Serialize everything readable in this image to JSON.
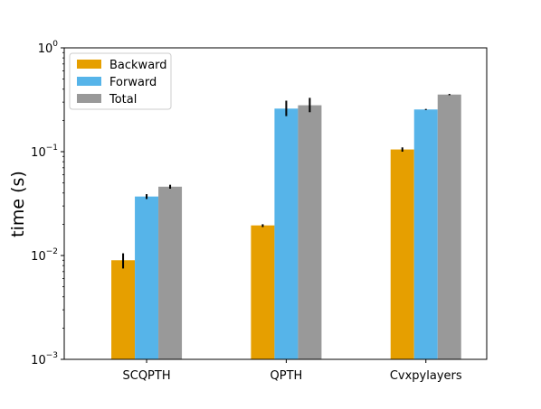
{
  "chart_data": {
    "type": "bar",
    "title": "",
    "xlabel": "",
    "ylabel": "time (s)",
    "yscale": "log",
    "ylim": [
      0.001,
      1
    ],
    "yticks": [
      {
        "value": 0.001,
        "base": "10",
        "exp": "−3"
      },
      {
        "value": 0.01,
        "base": "10",
        "exp": "−2"
      },
      {
        "value": 0.1,
        "base": "10",
        "exp": "−1"
      },
      {
        "value": 1,
        "base": "10",
        "exp": "0"
      }
    ],
    "categories": [
      "SCQPTH",
      "QPTH",
      "Cvxpylayers"
    ],
    "series": [
      {
        "name": "Backward",
        "color": "#E69F00",
        "values": [
          0.009,
          0.0195,
          0.105
        ],
        "err_low": [
          0.0075,
          0.0188,
          0.1
        ],
        "err_high": [
          0.0105,
          0.02,
          0.11
        ]
      },
      {
        "name": "Forward",
        "color": "#56B4E9",
        "values": [
          0.037,
          0.26,
          0.255
        ],
        "err_low": [
          0.035,
          0.22,
          0.252
        ],
        "err_high": [
          0.039,
          0.31,
          0.258
        ]
      },
      {
        "name": "Total",
        "color": "#999999",
        "values": [
          0.046,
          0.28,
          0.355
        ],
        "err_low": [
          0.044,
          0.24,
          0.35
        ],
        "err_high": [
          0.048,
          0.33,
          0.36
        ]
      }
    ],
    "grid": false,
    "legend": "top-left"
  }
}
